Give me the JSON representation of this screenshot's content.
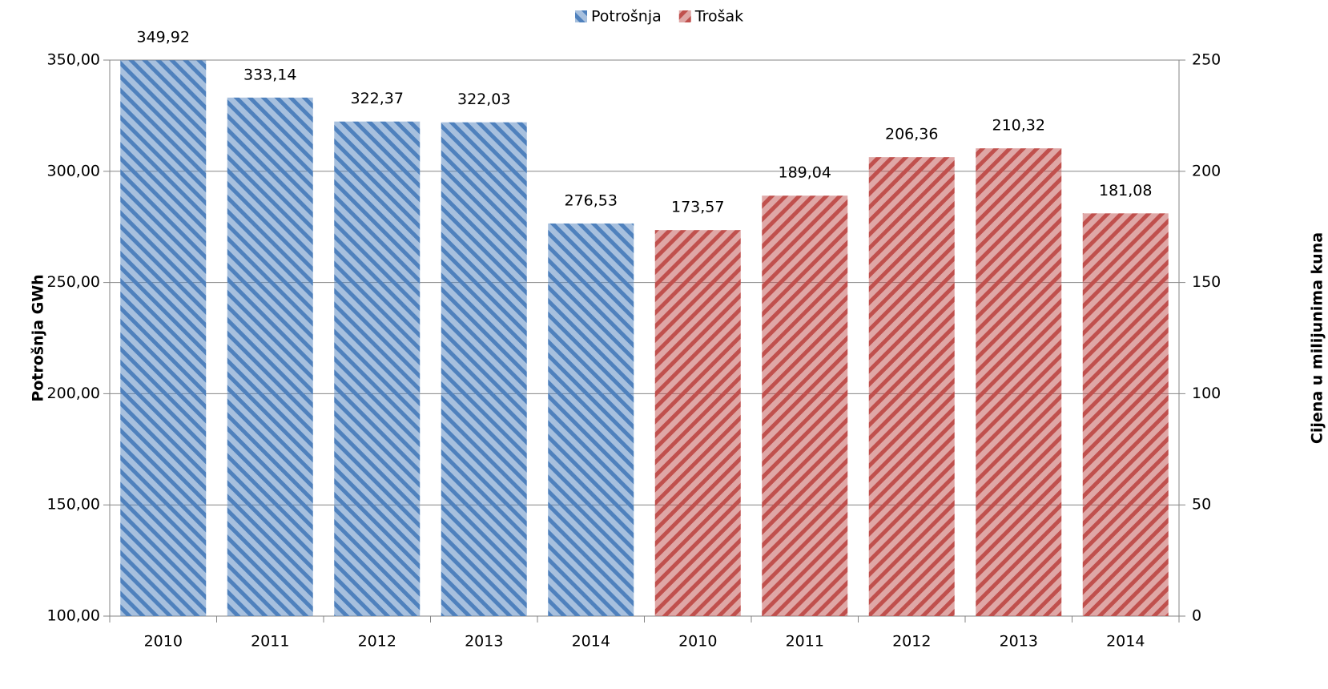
{
  "chart_data": {
    "type": "bar",
    "categories": [
      "2010",
      "2011",
      "2012",
      "2013",
      "2014",
      "2010",
      "2011",
      "2012",
      "2013",
      "2014"
    ],
    "series": [
      {
        "name": "Potrošnja",
        "color": "#4f81bd",
        "axis": "y",
        "values": [
          349.92,
          333.14,
          322.37,
          322.03,
          276.53,
          null,
          null,
          null,
          null,
          null
        ],
        "value_labels": [
          "349,92",
          "333,14",
          "322,37",
          "322,03",
          "276,53",
          null,
          null,
          null,
          null,
          null
        ]
      },
      {
        "name": "Trošak",
        "color": "#c0504d",
        "axis": "y2",
        "values": [
          null,
          null,
          null,
          null,
          null,
          173.57,
          189.04,
          206.36,
          210.32,
          181.08
        ],
        "value_labels": [
          null,
          null,
          null,
          null,
          null,
          "173,57",
          "189,04",
          "206,36",
          "210,32",
          "181,08"
        ]
      }
    ],
    "y_label": "Potrošnja GWh",
    "y2_label": "Cijena u milijunima kuna",
    "ylim": [
      100,
      350
    ],
    "yticks": [
      {
        "value": 100,
        "label": "100,00"
      },
      {
        "value": 150,
        "label": "150,00"
      },
      {
        "value": 200,
        "label": "200,00"
      },
      {
        "value": 250,
        "label": "250,00"
      },
      {
        "value": 300,
        "label": "300,00"
      },
      {
        "value": 350,
        "label": "350,00"
      }
    ],
    "y2lim": [
      0,
      250
    ],
    "y2ticks": [
      0,
      50,
      100,
      150,
      200,
      250
    ],
    "grid": true,
    "legend": "top"
  }
}
